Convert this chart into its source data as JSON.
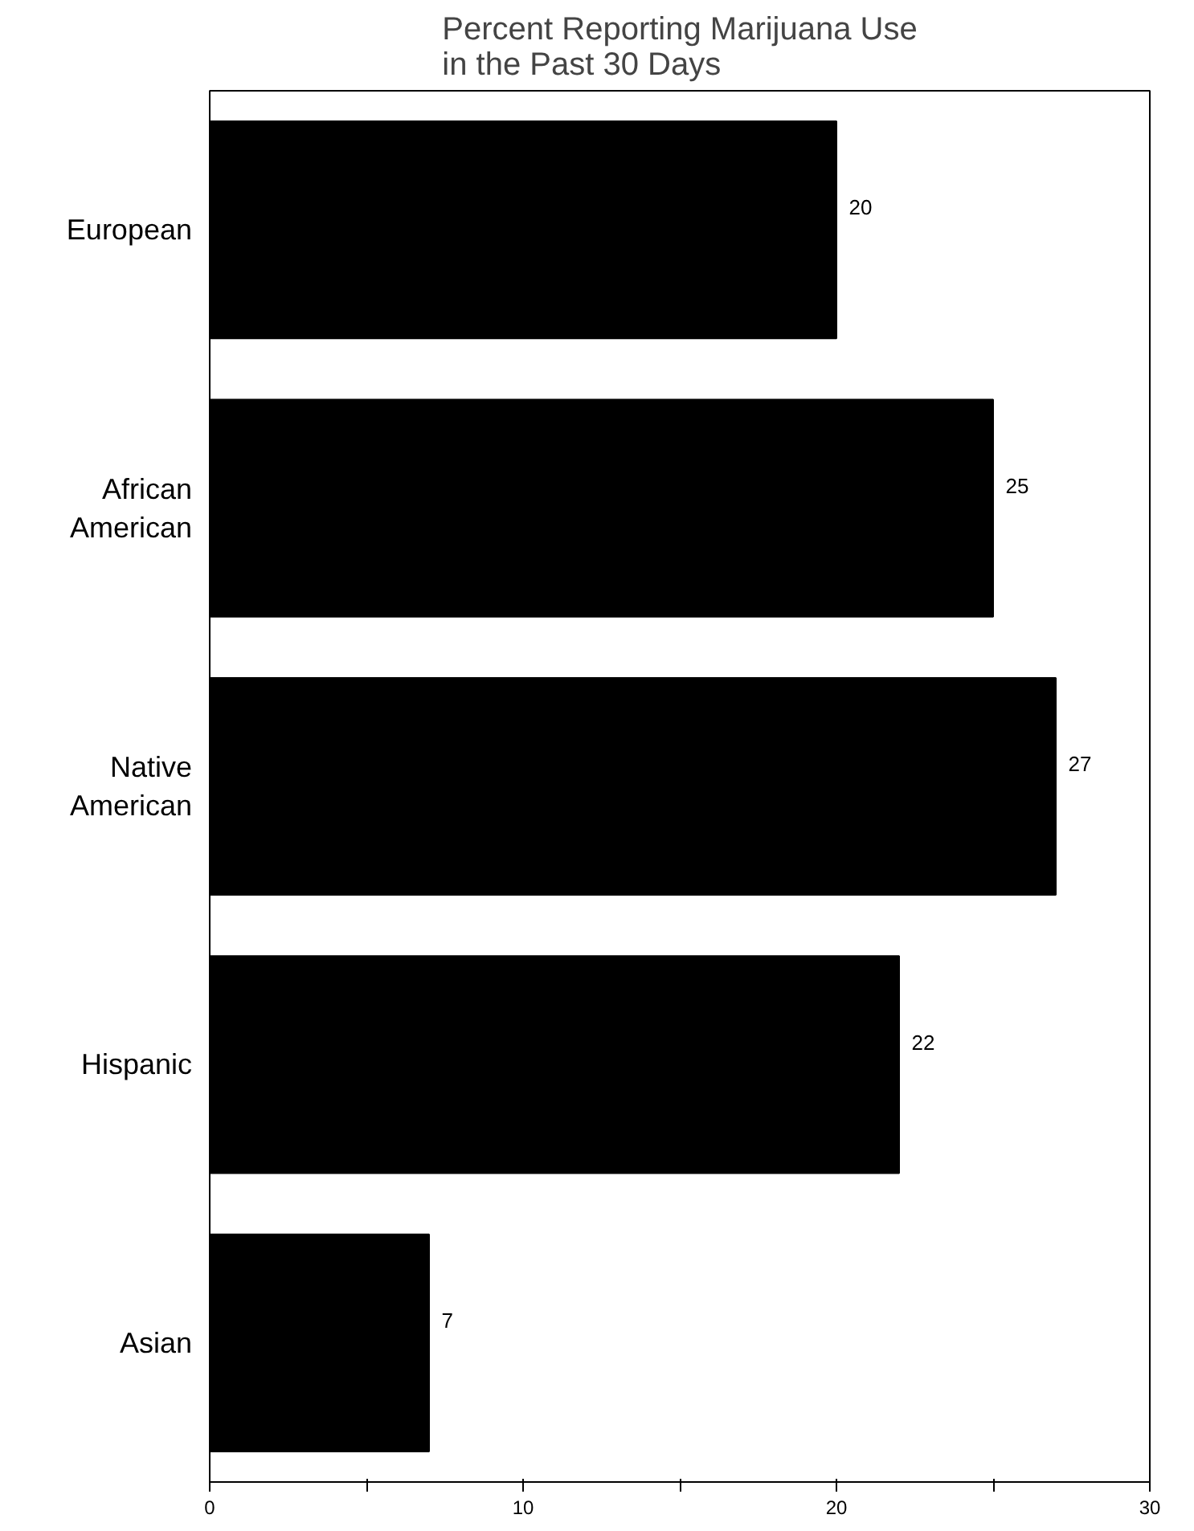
{
  "chart_data": {
    "type": "bar",
    "orientation": "horizontal",
    "title": "Percent Reporting Marijuana Use\nin the Past 30 Days",
    "categories": [
      "European",
      "African American",
      "Native American",
      "Hispanic",
      "Asian"
    ],
    "values": [
      20,
      25,
      27,
      22,
      7
    ],
    "color": "#000000",
    "data_labels": true,
    "xlim": [
      0,
      30
    ],
    "xticks": [
      0,
      {
        "value": 5,
        "label": null
      },
      10,
      {
        "value": 15,
        "label": null
      },
      20,
      {
        "value": 25,
        "label": null
      },
      30
    ],
    "grid": false
  }
}
